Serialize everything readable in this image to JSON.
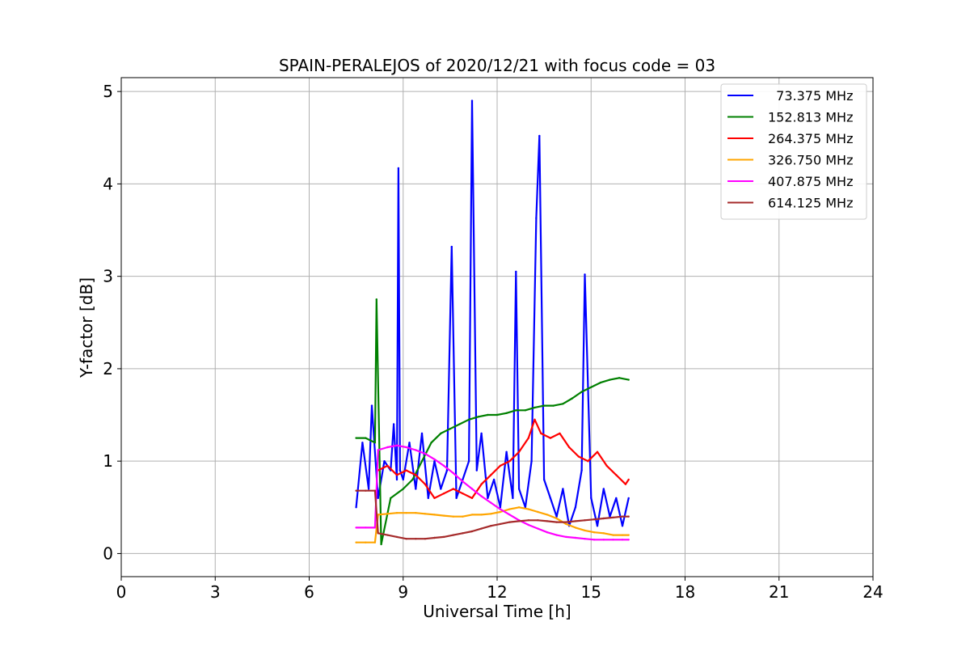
{
  "chart_data": {
    "type": "line",
    "title": "SPAIN-PERALEJOS of 2020/12/21 with focus code = 03",
    "xlabel": "Universal Time [h]",
    "ylabel": "Y-factor [dB]",
    "xlim": [
      0,
      24
    ],
    "ylim": [
      -0.25,
      5.15
    ],
    "xticks": [
      0,
      3,
      6,
      9,
      12,
      15,
      18,
      21,
      24
    ],
    "xtick_labels": [
      "0",
      "3",
      "6",
      "9",
      "12",
      "15",
      "18",
      "21",
      "24"
    ],
    "yticks": [
      0,
      1,
      2,
      3,
      4,
      5
    ],
    "ytick_labels": [
      "0",
      "1",
      "2",
      "3",
      "4",
      "5"
    ],
    "grid": true,
    "legend_position": "top-right",
    "series": [
      {
        "name": "  73.375 MHz",
        "color": "#0000ff",
        "x": [
          7.5,
          7.7,
          7.9,
          8.0,
          8.2,
          8.4,
          8.6,
          8.7,
          8.8,
          8.85,
          8.9,
          9.0,
          9.2,
          9.4,
          9.6,
          9.8,
          10.0,
          10.2,
          10.4,
          10.55,
          10.7,
          10.9,
          11.1,
          11.2,
          11.35,
          11.5,
          11.7,
          11.9,
          12.1,
          12.3,
          12.5,
          12.6,
          12.7,
          12.9,
          13.1,
          13.25,
          13.35,
          13.5,
          13.7,
          13.9,
          14.1,
          14.3,
          14.5,
          14.7,
          14.8,
          15.0,
          15.2,
          15.4,
          15.6,
          15.8,
          16.0,
          16.2
        ],
        "y": [
          0.5,
          1.2,
          0.7,
          1.6,
          0.6,
          1.0,
          0.9,
          1.4,
          0.8,
          4.17,
          0.9,
          0.8,
          1.2,
          0.7,
          1.3,
          0.6,
          1.0,
          0.7,
          0.9,
          3.32,
          0.6,
          0.8,
          1.0,
          4.9,
          0.9,
          1.3,
          0.6,
          0.8,
          0.5,
          1.1,
          0.6,
          3.05,
          0.7,
          0.5,
          1.0,
          3.63,
          4.52,
          0.8,
          0.6,
          0.4,
          0.7,
          0.3,
          0.5,
          0.9,
          3.02,
          0.6,
          0.3,
          0.7,
          0.4,
          0.6,
          0.3,
          0.6
        ]
      },
      {
        "name": "152.813 MHz",
        "color": "#008000",
        "x": [
          7.5,
          7.8,
          8.1,
          8.15,
          8.3,
          8.6,
          9.0,
          9.3,
          9.6,
          9.9,
          10.2,
          10.5,
          10.8,
          11.1,
          11.4,
          11.7,
          12.0,
          12.3,
          12.6,
          12.9,
          13.2,
          13.5,
          13.8,
          14.1,
          14.4,
          14.7,
          15.0,
          15.3,
          15.6,
          15.9,
          16.2
        ],
        "y": [
          1.25,
          1.25,
          1.2,
          2.75,
          0.1,
          0.6,
          0.7,
          0.8,
          1.0,
          1.2,
          1.3,
          1.35,
          1.4,
          1.45,
          1.48,
          1.5,
          1.5,
          1.52,
          1.55,
          1.55,
          1.58,
          1.6,
          1.6,
          1.62,
          1.68,
          1.75,
          1.8,
          1.85,
          1.88,
          1.9,
          1.88
        ]
      },
      {
        "name": "264.375 MHz",
        "color": "#ff0000",
        "x": [
          8.2,
          8.5,
          8.8,
          9.1,
          9.4,
          9.7,
          10.0,
          10.3,
          10.6,
          10.9,
          11.2,
          11.5,
          11.8,
          12.1,
          12.4,
          12.7,
          13.0,
          13.2,
          13.4,
          13.7,
          14.0,
          14.3,
          14.6,
          14.9,
          15.2,
          15.5,
          15.8,
          16.1,
          16.2
        ],
        "y": [
          0.9,
          0.95,
          0.85,
          0.9,
          0.85,
          0.75,
          0.6,
          0.65,
          0.7,
          0.65,
          0.6,
          0.75,
          0.85,
          0.95,
          1.0,
          1.1,
          1.25,
          1.45,
          1.3,
          1.25,
          1.3,
          1.15,
          1.05,
          1.0,
          1.1,
          0.95,
          0.85,
          0.75,
          0.8
        ]
      },
      {
        "name": "326.750 MHz",
        "color": "#ffa500",
        "x": [
          7.5,
          7.8,
          8.1,
          8.2,
          8.5,
          8.8,
          9.1,
          9.4,
          9.7,
          10.0,
          10.3,
          10.6,
          10.9,
          11.2,
          11.5,
          11.8,
          12.1,
          12.4,
          12.7,
          13.0,
          13.3,
          13.6,
          13.9,
          14.2,
          14.5,
          14.8,
          15.1,
          15.4,
          15.7,
          16.0,
          16.2
        ],
        "y": [
          0.12,
          0.12,
          0.12,
          0.42,
          0.43,
          0.44,
          0.44,
          0.44,
          0.43,
          0.42,
          0.41,
          0.4,
          0.4,
          0.42,
          0.42,
          0.43,
          0.45,
          0.48,
          0.5,
          0.48,
          0.45,
          0.42,
          0.38,
          0.32,
          0.28,
          0.25,
          0.23,
          0.22,
          0.2,
          0.2,
          0.2
        ]
      },
      {
        "name": "407.875 MHz",
        "color": "#ff00ff",
        "x": [
          7.5,
          7.8,
          8.1,
          8.2,
          8.5,
          8.8,
          9.1,
          9.4,
          9.7,
          10.0,
          10.3,
          10.6,
          10.9,
          11.2,
          11.5,
          11.8,
          12.1,
          12.4,
          12.7,
          13.0,
          13.3,
          13.6,
          13.9,
          14.2,
          14.5,
          14.8,
          15.1,
          15.4,
          15.7,
          16.0,
          16.2
        ],
        "y": [
          0.28,
          0.28,
          0.28,
          1.12,
          1.15,
          1.17,
          1.15,
          1.12,
          1.08,
          1.02,
          0.95,
          0.87,
          0.78,
          0.7,
          0.62,
          0.55,
          0.48,
          0.42,
          0.36,
          0.31,
          0.27,
          0.23,
          0.2,
          0.18,
          0.17,
          0.16,
          0.15,
          0.15,
          0.15,
          0.15,
          0.15
        ]
      },
      {
        "name": "614.125 MHz",
        "color": "#a52a2a",
        "x": [
          7.5,
          7.8,
          8.1,
          8.2,
          8.5,
          8.8,
          9.1,
          9.4,
          9.7,
          10.0,
          10.3,
          10.6,
          10.9,
          11.2,
          11.5,
          11.8,
          12.1,
          12.4,
          12.7,
          13.0,
          13.3,
          13.6,
          13.9,
          14.2,
          14.5,
          14.8,
          15.1,
          15.4,
          15.7,
          16.0,
          16.2
        ],
        "y": [
          0.68,
          0.68,
          0.68,
          0.22,
          0.2,
          0.18,
          0.16,
          0.16,
          0.16,
          0.17,
          0.18,
          0.2,
          0.22,
          0.24,
          0.27,
          0.3,
          0.32,
          0.34,
          0.35,
          0.36,
          0.36,
          0.35,
          0.34,
          0.34,
          0.35,
          0.36,
          0.37,
          0.38,
          0.39,
          0.4,
          0.4
        ]
      }
    ]
  }
}
